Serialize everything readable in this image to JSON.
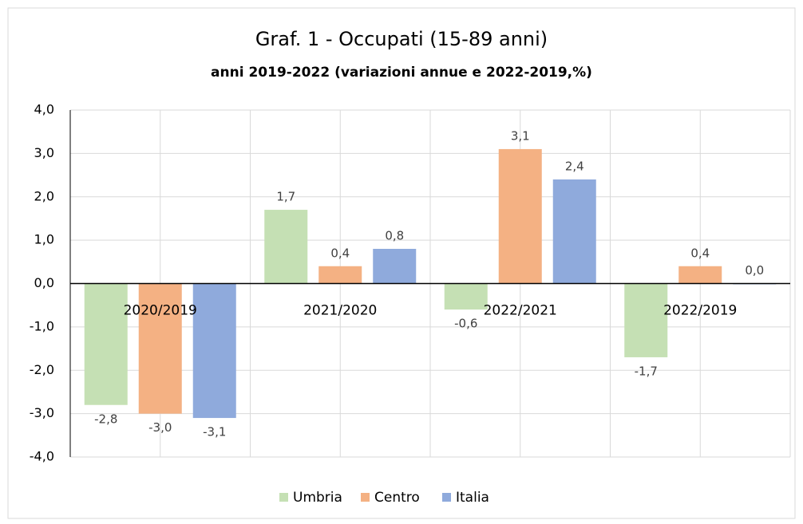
{
  "chart_data": {
    "type": "bar",
    "title": "Graf. 1 - Occupati (15-89 anni)",
    "subtitle": "anni 2019-2022 (variazioni annue e 2022-2019,%)",
    "categories": [
      "2020/2019",
      "2021/2020",
      "2022/2021",
      "2022/2019"
    ],
    "series": [
      {
        "name": "Umbria",
        "color": "#c5e0b4",
        "values": [
          -2.8,
          1.7,
          -0.6,
          -1.7
        ],
        "value_labels": [
          "-2,8",
          "1,7",
          "-0,6",
          "-1,7"
        ]
      },
      {
        "name": "Centro",
        "color": "#f4b183",
        "values": [
          -3.0,
          0.4,
          3.1,
          0.4
        ],
        "value_labels": [
          "-3,0",
          "0,4",
          "3,1",
          "0,4"
        ]
      },
      {
        "name": "Italia",
        "color": "#8faadc",
        "values": [
          -3.1,
          0.8,
          2.4,
          0.0
        ],
        "value_labels": [
          "-3,1",
          "0,8",
          "2,4",
          "0,0"
        ]
      }
    ],
    "ylim": [
      -4,
      4
    ],
    "yticks": [
      {
        "value": -4,
        "label": "-4,0"
      },
      {
        "value": -3,
        "label": "-3,0"
      },
      {
        "value": -2,
        "label": "-2,0"
      },
      {
        "value": -1,
        "label": "-1,0"
      },
      {
        "value": 0,
        "label": "0,0"
      },
      {
        "value": 1,
        "label": "1,0"
      },
      {
        "value": 2,
        "label": "2,0"
      },
      {
        "value": 3,
        "label": "3,0"
      },
      {
        "value": 4,
        "label": "4,0"
      }
    ],
    "grid": true,
    "legend": "bottom"
  }
}
